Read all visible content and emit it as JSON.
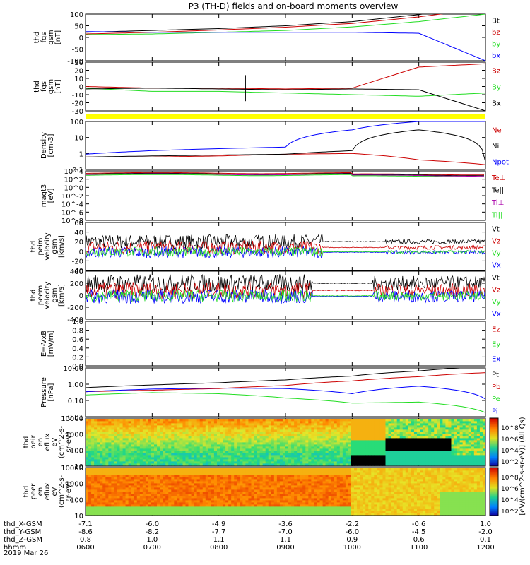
{
  "title": "P3 (TH-D) fields and on-board moments overview",
  "date_label": "2019 Mar 26",
  "colorbar_label": "[eV/(cm^2-s-sr-eV)] (All Qs)",
  "colors": {
    "black": "#000000",
    "red": "#cc0000",
    "green": "#22dd22",
    "blue": "#0000ff",
    "yellow": "#ffff00",
    "magenta": "#aa00aa"
  },
  "orbit_axis": {
    "rows": [
      {
        "label": "thd_X-GSM",
        "values": [
          "-7.1",
          "-6.0",
          "-4.9",
          "-3.6",
          "-2.2",
          "-0.6",
          "1.0"
        ]
      },
      {
        "label": "thd_Y-GSM",
        "values": [
          "-8.6",
          "-8.2",
          "-7.7",
          "-7.0",
          "-6.0",
          "-4.5",
          "-2.0"
        ]
      },
      {
        "label": "thd_Z-GSM",
        "values": [
          "0.8",
          "1.0",
          "1.1",
          "1.1",
          "0.9",
          "0.6",
          "0.1"
        ]
      },
      {
        "label": "hhmm",
        "values": [
          "0600",
          "0700",
          "0800",
          "0900",
          "1000",
          "1100",
          "1200"
        ]
      }
    ]
  },
  "chart_data": [
    {
      "type": "line",
      "id": "fgs_gsm",
      "ylabel": [
        "thd",
        "fgs",
        "gsm",
        "[nT]"
      ],
      "ylim": [
        -100,
        100
      ],
      "yticks": [
        "100",
        "50",
        "0",
        "-50",
        "-100"
      ],
      "legend": [
        "Bt",
        "bz",
        "by",
        "bx"
      ],
      "x_hours": [
        6,
        7,
        8,
        9,
        10,
        11,
        12
      ],
      "series": [
        {
          "name": "Bt",
          "color": "black",
          "values": [
            22,
            30,
            38,
            50,
            68,
            98,
            140
          ]
        },
        {
          "name": "bz",
          "color": "red",
          "values": [
            15,
            22,
            32,
            44,
            60,
            88,
            125
          ]
        },
        {
          "name": "by",
          "color": "green",
          "values": [
            12,
            15,
            22,
            30,
            45,
            68,
            100
          ]
        },
        {
          "name": "bx",
          "color": "blue",
          "values": [
            25,
            22,
            22,
            22,
            22,
            18,
            -100
          ]
        }
      ]
    },
    {
      "type": "line",
      "id": "fgs_dsl",
      "ylabel": [
        "thd",
        "fgs",
        "gsm",
        "[nT]"
      ],
      "ylim": [
        -30,
        30
      ],
      "yticks": [
        "30",
        "20",
        "10",
        "0",
        "-10",
        "-20",
        "-30"
      ],
      "legend": [
        "Bz",
        "By",
        "Bx"
      ],
      "x_hours": [
        6,
        7,
        8,
        9,
        10,
        11,
        12
      ],
      "series": [
        {
          "name": "Bz",
          "color": "red",
          "values": [
            0,
            -2,
            -2,
            -3,
            -2,
            24,
            28
          ]
        },
        {
          "name": "By",
          "color": "green",
          "values": [
            -2,
            -6,
            -6,
            -8,
            -10,
            -12,
            -8
          ]
        },
        {
          "name": "Bx",
          "color": "black",
          "values": [
            -3,
            -2,
            -3,
            -4,
            -3,
            -4,
            -30
          ]
        }
      ]
    },
    {
      "type": "line",
      "id": "density",
      "ylabel": [
        "Density",
        "[cm-3]"
      ],
      "yscale": "log",
      "ylim": [
        0.1,
        100
      ],
      "yticks": [
        "100",
        "10",
        "1",
        "0.1"
      ],
      "legend": [
        "Ne",
        "Ni",
        "Npot"
      ],
      "x_hours": [
        6,
        7,
        8,
        9,
        10,
        11,
        12
      ],
      "series": [
        {
          "name": "Ne",
          "color": "red",
          "values": [
            0.6,
            0.6,
            0.7,
            0.9,
            1.0,
            0.4,
            0.2
          ]
        },
        {
          "name": "Ni",
          "color": "black",
          "values": [
            0.6,
            0.7,
            0.8,
            0.9,
            1.5,
            30,
            0.3
          ]
        },
        {
          "name": "Npot",
          "color": "blue",
          "values": [
            0.9,
            1.5,
            2.0,
            2.5,
            30,
            100,
            100
          ]
        }
      ]
    },
    {
      "type": "line",
      "id": "temperature",
      "ylabel": [
        "magt3",
        "[eV]"
      ],
      "yscale": "log",
      "ylim": [
        1e-08,
        10000
      ],
      "yticks": [
        "10^4",
        "10^2",
        "10^0",
        "10^-2",
        "10^-4",
        "10^-6",
        "10^-8"
      ],
      "legend": [
        "Te⊥",
        "Te||",
        "Ti⊥",
        "Ti||"
      ]
    },
    {
      "type": "line",
      "id": "peim_velocity",
      "ylabel": [
        "thd",
        "peim",
        "velocity",
        "gsm",
        "[km/s]"
      ],
      "ylim": [
        -40,
        60
      ],
      "yticks": [
        "60",
        "40",
        "20",
        "0",
        "-20",
        "-40"
      ],
      "legend": [
        "Vt",
        "Vz",
        "Vy",
        "Vx"
      ]
    },
    {
      "type": "line",
      "id": "peem_velocity",
      "ylabel": [
        "thd",
        "peem",
        "velocity",
        "gsm",
        "[km/s]"
      ],
      "ylim": [
        -400,
        400
      ],
      "yticks": [
        "400",
        "200",
        "0",
        "-200",
        "-400"
      ],
      "legend": [
        "Vt",
        "Vz",
        "Vy",
        "Vx"
      ]
    },
    {
      "type": "line",
      "id": "efield",
      "ylabel": [
        "E=-VxB",
        "[mV/m]"
      ],
      "ylim": [
        0,
        1
      ],
      "yticks": [
        "1.0",
        "0.8",
        "0.6",
        "0.4",
        "0.2",
        "0.0"
      ],
      "legend": [
        "Ez",
        "Ey",
        "Ex"
      ]
    },
    {
      "type": "line",
      "id": "pressure",
      "ylabel": [
        "Pressure",
        "[nPa]"
      ],
      "yscale": "log",
      "ylim": [
        0.005,
        20
      ],
      "yticks": [
        "10.00",
        "1.00",
        "0.10",
        "0.01"
      ],
      "legend": [
        "Pt",
        "Pb",
        "Pe",
        "Pi"
      ],
      "x_hours": [
        6,
        7,
        8,
        9,
        10,
        11,
        12
      ],
      "series": [
        {
          "name": "Pt",
          "color": "black",
          "values": [
            0.7,
            1.1,
            1.6,
            2.6,
            5.0,
            12,
            25
          ]
        },
        {
          "name": "Pb",
          "color": "red",
          "values": [
            0.35,
            0.45,
            0.6,
            1.0,
            2.2,
            4.5,
            9.0
          ]
        },
        {
          "name": "Pe",
          "color": "green",
          "values": [
            0.2,
            0.3,
            0.25,
            0.12,
            0.05,
            0.06,
            0.01
          ]
        },
        {
          "name": "Pi",
          "color": "blue",
          "values": [
            0.35,
            0.55,
            0.65,
            0.6,
            0.25,
            0.9,
            0.1
          ]
        }
      ]
    },
    {
      "type": "heatmap",
      "id": "peir",
      "ylabel": [
        "thd",
        "peir",
        "en",
        "eflux",
        "eV",
        "(cm^2-s-",
        "sr-eV)"
      ],
      "yscale": "log",
      "ylim": [
        5,
        30000
      ],
      "yticks": [
        "10000",
        "1000",
        "100",
        "10"
      ]
    },
    {
      "type": "heatmap",
      "id": "peer",
      "ylabel": [
        "thd",
        "peer",
        "en",
        "eflux",
        "eV",
        "(cm^2-s-",
        "sr-eV)"
      ],
      "yscale": "log",
      "ylim": [
        5,
        30000
      ],
      "yticks": [
        "10000",
        "1000",
        "100",
        "10"
      ]
    }
  ],
  "colorbars": [
    {
      "ticks": [
        "10^8",
        "10^6",
        "10^4",
        "10^2"
      ]
    },
    {
      "ticks": [
        "10^8",
        "10^6",
        "10^4",
        "10^2"
      ]
    }
  ]
}
